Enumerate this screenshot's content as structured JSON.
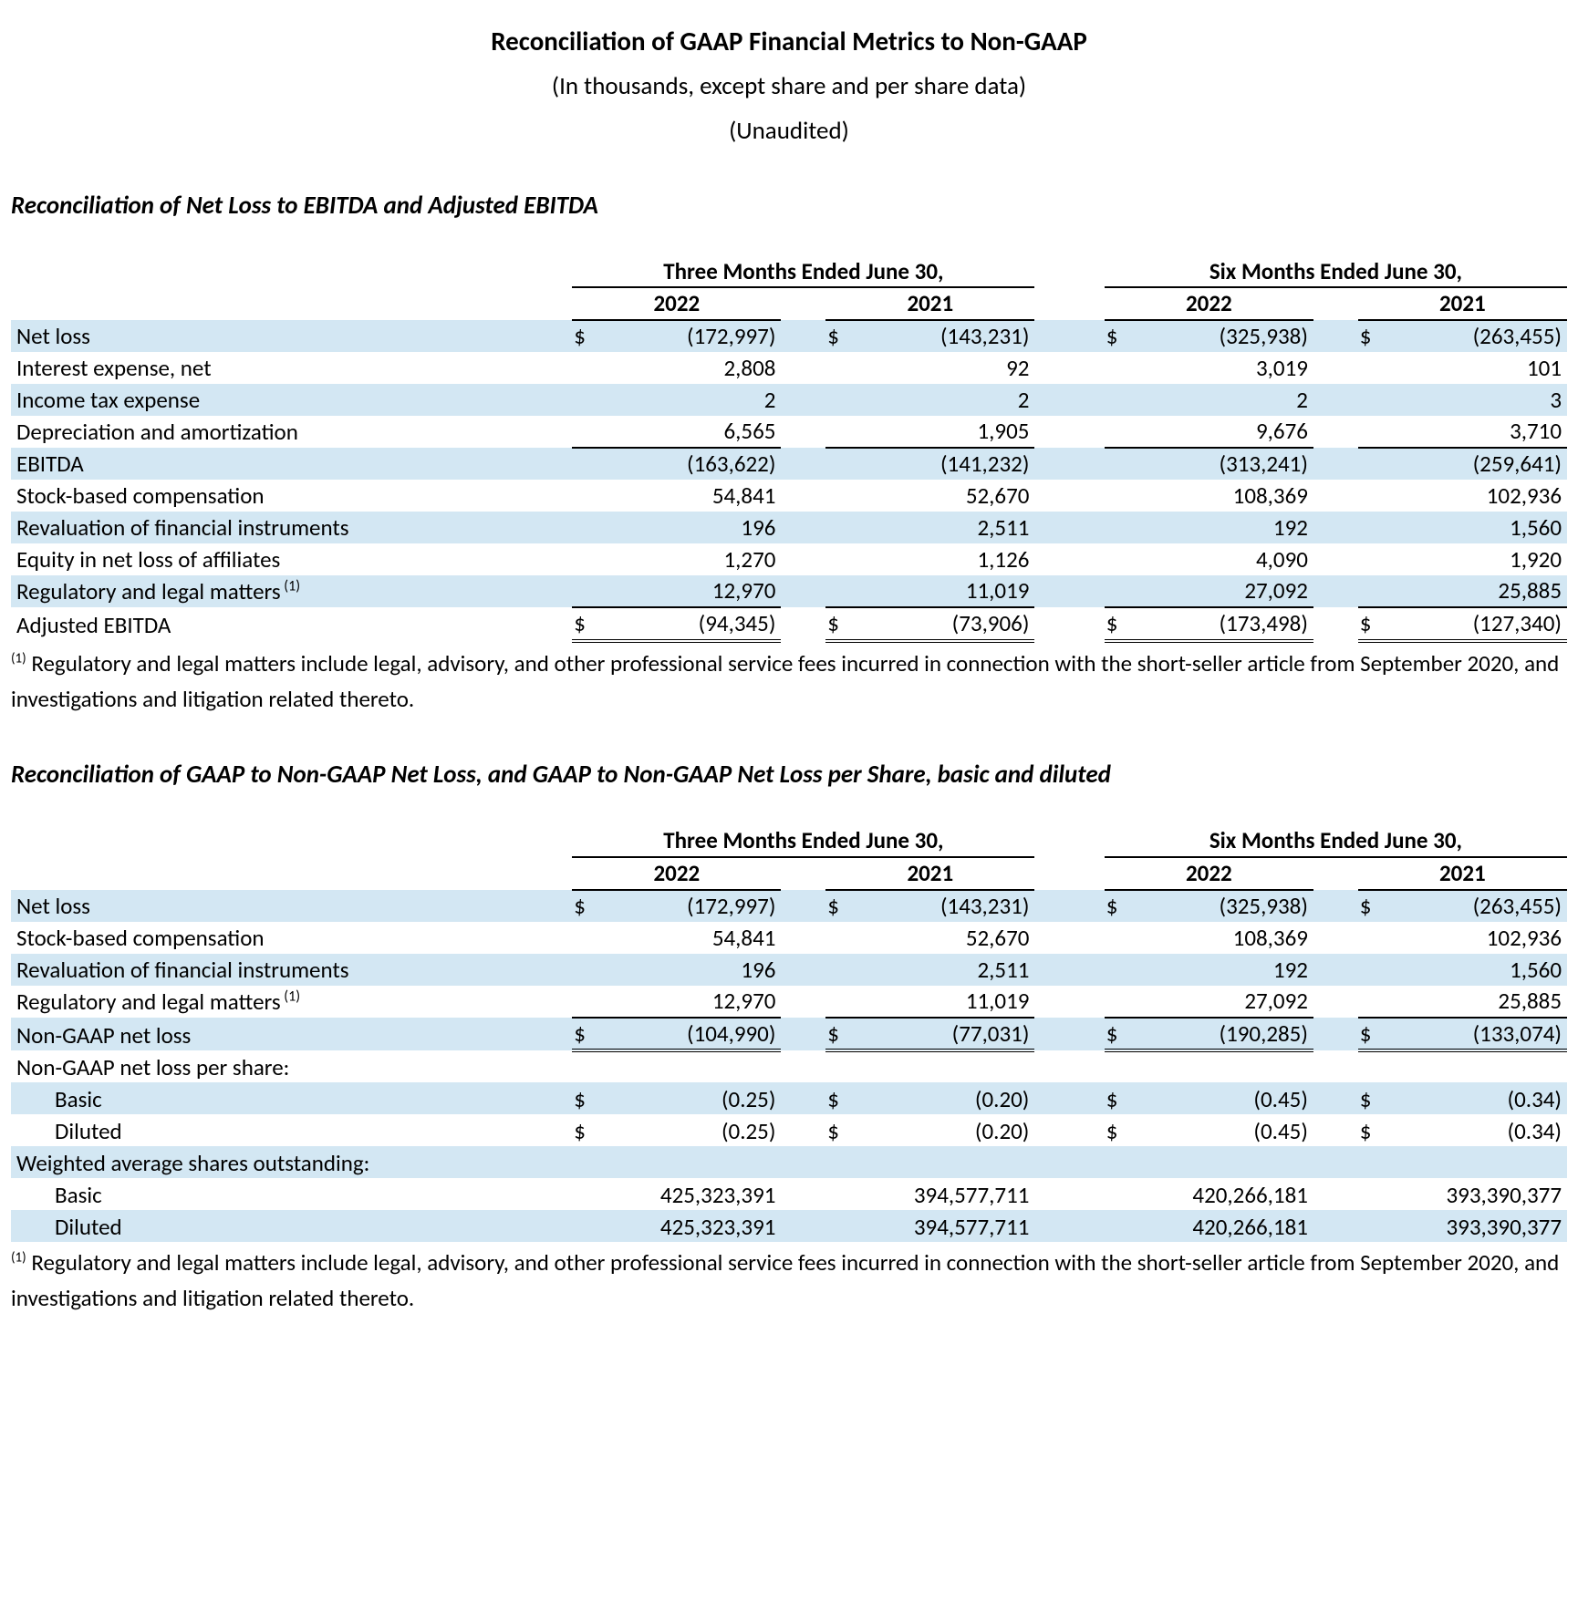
{
  "font_family": "Calibri, 'Segoe UI', Arial, sans-serif",
  "colors": {
    "text": "#000000",
    "band": "#d3e7f3",
    "rule": "#000000",
    "background": "#ffffff"
  },
  "header": {
    "title": "Reconciliation of GAAP Financial Metrics to Non-GAAP",
    "subtitle1": "(In thousands, except share and per share data)",
    "subtitle2": "(Unaudited)"
  },
  "sections": {
    "ebitda": {
      "heading": "Reconciliation of Net Loss to EBITDA and Adjusted EBITDA",
      "period_headers": [
        "Three Months Ended June 30,",
        "Six Months Ended June 30,"
      ],
      "year_headers": [
        "2022",
        "2021",
        "2022",
        "2021"
      ],
      "rows": [
        {
          "label": "Net loss",
          "band": true,
          "currency": true,
          "values": [
            "(172,997)",
            "(143,231)",
            "(325,938)",
            "(263,455)"
          ]
        },
        {
          "label": "Interest expense, net",
          "values": [
            "2,808",
            "92",
            "3,019",
            "101"
          ]
        },
        {
          "label": "Income tax expense",
          "band": true,
          "values": [
            "2",
            "2",
            "2",
            "3"
          ]
        },
        {
          "label": "Depreciation and amortization",
          "rule": "sub",
          "values": [
            "6,565",
            "1,905",
            "9,676",
            "3,710"
          ]
        },
        {
          "label": "EBITDA",
          "band": true,
          "values": [
            "(163,622)",
            "(141,232)",
            "(313,241)",
            "(259,641)"
          ]
        },
        {
          "label": "Stock-based compensation",
          "values": [
            "54,841",
            "52,670",
            "108,369",
            "102,936"
          ]
        },
        {
          "label": "Revaluation of financial instruments",
          "band": true,
          "values": [
            "196",
            "2,511",
            "192",
            "1,560"
          ]
        },
        {
          "label": "Equity in net loss of affiliates",
          "values": [
            "1,270",
            "1,126",
            "4,090",
            "1,920"
          ]
        },
        {
          "label": "Regulatory and legal matters",
          "sup": "(1)",
          "band": true,
          "rule": "sub",
          "values": [
            "12,970",
            "11,019",
            "27,092",
            "25,885"
          ]
        },
        {
          "label": "Adjusted EBITDA",
          "currency": true,
          "rule": "dbl",
          "values": [
            "(94,345)",
            "(73,906)",
            "(173,498)",
            "(127,340)"
          ]
        }
      ],
      "footnote_sup": "(1)",
      "footnote": " Regulatory and legal matters include legal, advisory, and other professional service fees incurred in connection with the short-seller article from September 2020, and investigations and litigation related thereto."
    },
    "nongaap": {
      "heading": "Reconciliation of GAAP to Non-GAAP Net Loss, and GAAP to Non-GAAP Net Loss per Share, basic and diluted",
      "period_headers": [
        "Three Months Ended June 30,",
        "Six Months Ended June 30,"
      ],
      "year_headers": [
        "2022",
        "2021",
        "2022",
        "2021"
      ],
      "rows": [
        {
          "label": "Net loss",
          "band": true,
          "currency": true,
          "values": [
            "(172,997)",
            "(143,231)",
            "(325,938)",
            "(263,455)"
          ]
        },
        {
          "label": "Stock-based compensation",
          "values": [
            "54,841",
            "52,670",
            "108,369",
            "102,936"
          ]
        },
        {
          "label": "Revaluation of financial instruments",
          "band": true,
          "values": [
            "196",
            "2,511",
            "192",
            "1,560"
          ]
        },
        {
          "label": "Regulatory and legal matters",
          "sup": "(1)",
          "rule": "sub",
          "values": [
            "12,970",
            "11,019",
            "27,092",
            "25,885"
          ]
        },
        {
          "label": "Non-GAAP net loss",
          "band": true,
          "currency": true,
          "rule": "dbl",
          "values": [
            "(104,990)",
            "(77,031)",
            "(190,285)",
            "(133,074)"
          ]
        },
        {
          "label": "Non-GAAP net loss per share:",
          "values": [
            "",
            "",
            "",
            ""
          ]
        },
        {
          "label": "Basic",
          "indent": 1,
          "band": true,
          "currency": true,
          "values": [
            "(0.25)",
            "(0.20)",
            "(0.45)",
            "(0.34)"
          ]
        },
        {
          "label": "Diluted",
          "indent": 1,
          "currency": true,
          "values": [
            "(0.25)",
            "(0.20)",
            "(0.45)",
            "(0.34)"
          ]
        },
        {
          "label": "Weighted average shares outstanding:",
          "band": true,
          "values": [
            "",
            "",
            "",
            ""
          ]
        },
        {
          "label": "Basic",
          "indent": 1,
          "values": [
            "425,323,391",
            "394,577,711",
            "420,266,181",
            "393,390,377"
          ]
        },
        {
          "label": "Diluted",
          "indent": 1,
          "band": true,
          "values": [
            "425,323,391",
            "394,577,711",
            "420,266,181",
            "393,390,377"
          ]
        }
      ],
      "footnote_sup": "(1)",
      "footnote": " Regulatory and legal matters include legal, advisory, and other professional service fees incurred in connection with the short-seller article from September 2020, and investigations and litigation related thereto."
    }
  }
}
